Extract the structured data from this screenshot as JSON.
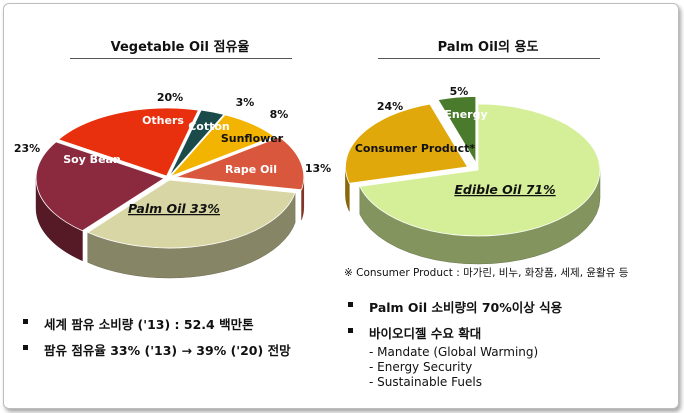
{
  "left_panel": {
    "title": "Vegetable Oil 점유율",
    "bullets": [
      "세계 팜유 소비량 ('13) : 52.4 백만톤",
      "팜유 점유율 33% ('13) → 39% ('20) 전망"
    ]
  },
  "right_panel": {
    "title": "Palm Oil의 용도",
    "footnote": "※ Consumer Product : 마가린, 비누, 화장품, 세제, 윤활유 등",
    "bullets": [
      "Palm Oil 소비량의 70%이상 식용",
      "바이오디젤 수요 확대"
    ],
    "sub_items": [
      "- Mandate (Global Warming)",
      "- Energy Security",
      "- Sustainable Fuels"
    ]
  },
  "chart_data": [
    {
      "type": "pie",
      "title": "Vegetable Oil 점유율",
      "slices": [
        {
          "name": "Palm Oil",
          "label": "Palm Oil  33%",
          "value": 33,
          "color": "#d8d6a4",
          "emphasis": true
        },
        {
          "name": "Soy Bean",
          "label": "Soy Bean",
          "pct_label": "23%",
          "value": 23,
          "color": "#8b2a3e"
        },
        {
          "name": "Others",
          "label": "Others",
          "pct_label": "20%",
          "value": 20,
          "color": "#e8300e"
        },
        {
          "name": "Cotton",
          "label": "Cotton",
          "pct_label": "3%",
          "value": 3,
          "color": "#1b4a4a"
        },
        {
          "name": "Sunflower",
          "label": "Sunflower",
          "pct_label": "8%",
          "value": 8,
          "color": "#f2b400"
        },
        {
          "name": "Rape Oil",
          "label": "Rape Oil",
          "pct_label": "13%",
          "value": 13,
          "color": "#d9573c"
        }
      ]
    },
    {
      "type": "pie",
      "title": "Palm Oil의 용도",
      "slices": [
        {
          "name": "Edible Oil",
          "label": "Edible Oil  71%",
          "value": 71,
          "color": "#d4ef98",
          "emphasis": true
        },
        {
          "name": "Consumer Product*",
          "label": "Consumer Product*",
          "pct_label": "24%",
          "value": 24,
          "color": "#e0a80a"
        },
        {
          "name": "Energy",
          "label": "Energy",
          "pct_label": "5%",
          "value": 5,
          "color": "#4a7a2c"
        }
      ]
    }
  ]
}
